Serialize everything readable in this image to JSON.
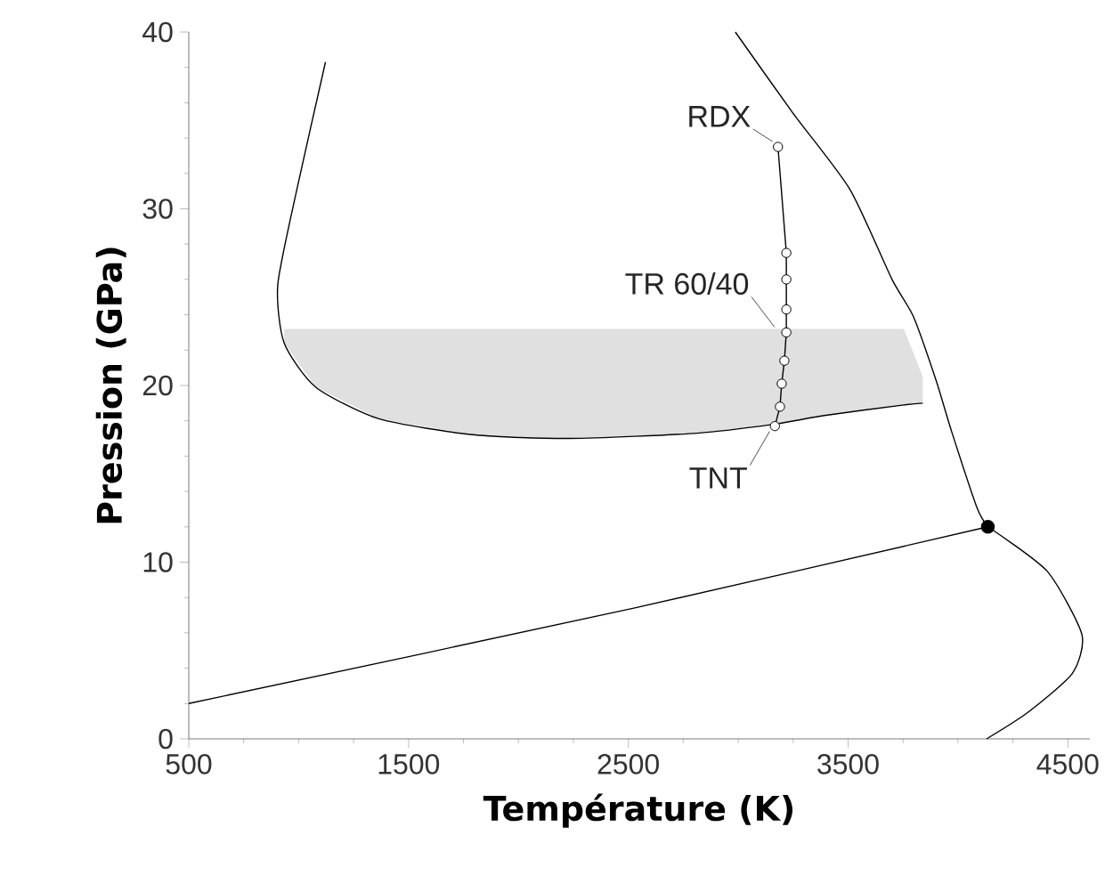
{
  "chart_data": {
    "type": "line",
    "xlabel": "Température (K)",
    "ylabel": "Pression (GPa)",
    "xlim": [
      500,
      4600
    ],
    "ylim": [
      0,
      40
    ],
    "xticks": [
      500,
      1500,
      2500,
      3500,
      4500
    ],
    "yticks": [
      0,
      10,
      20,
      30,
      40
    ],
    "series": [
      {
        "color": "#000000",
        "x": [
          500,
          2525,
          4136
        ],
        "values": [
          2.0,
          7.4,
          12.0
        ]
      },
      {
        "color": "#000000",
        "x": [
          2987,
          3250,
          3508,
          3700,
          3797,
          3900,
          3971,
          4086,
          4136
        ],
        "values": [
          40,
          35.4,
          31.1,
          26.0,
          23.9,
          20.3,
          17.4,
          13.1,
          12.0
        ]
      },
      {
        "color": "#000000",
        "x": [
          4136,
          4405,
          4564,
          4520,
          4318,
          4130
        ],
        "values": [
          12.0,
          9.5,
          5.9,
          3.7,
          1.5,
          0
        ]
      },
      {
        "color": "#000000",
        "x": [
          1122,
          992,
          905,
          934,
          1078,
          1368,
          1802,
          2235,
          2814,
          3161,
          3392,
          3754,
          3840
        ],
        "values": [
          38.3,
          31.1,
          25.7,
          22.4,
          19.9,
          18.1,
          17.2,
          17.0,
          17.3,
          17.8,
          18.3,
          18.9,
          19.0
        ],
        "lower": [
          null,
          null,
          null,
          22.4,
          19.9,
          18.1,
          17.2,
          17.0,
          17.3,
          17.8,
          18.3,
          18.9,
          19.0
        ],
        "upper": [
          null,
          null,
          null,
          23.2,
          23.2,
          23.2,
          23.2,
          23.2,
          23.2,
          23.2,
          23.2,
          23.2,
          20.5
        ]
      },
      {
        "color": "#000000",
        "marker": "circle",
        "x": [
          3181,
          3219,
          3219,
          3219,
          3219,
          3210,
          3198,
          3190,
          3167
        ],
        "values": [
          33.5,
          27.5,
          26.0,
          24.3,
          23.0,
          21.4,
          20.1,
          18.8,
          17.7
        ]
      },
      {
        "type": "scatter",
        "color": "#000000",
        "marker": "circle",
        "x": [
          4136
        ],
        "values": [
          12.0
        ]
      }
    ],
    "annotations": [
      {
        "text": "RDX",
        "x": 3181,
        "y": 33.5
      },
      {
        "text": "TR 60/40",
        "x": 3190,
        "y": 23.0
      },
      {
        "text": "TNT",
        "x": 3167,
        "y": 17.7
      }
    ]
  }
}
